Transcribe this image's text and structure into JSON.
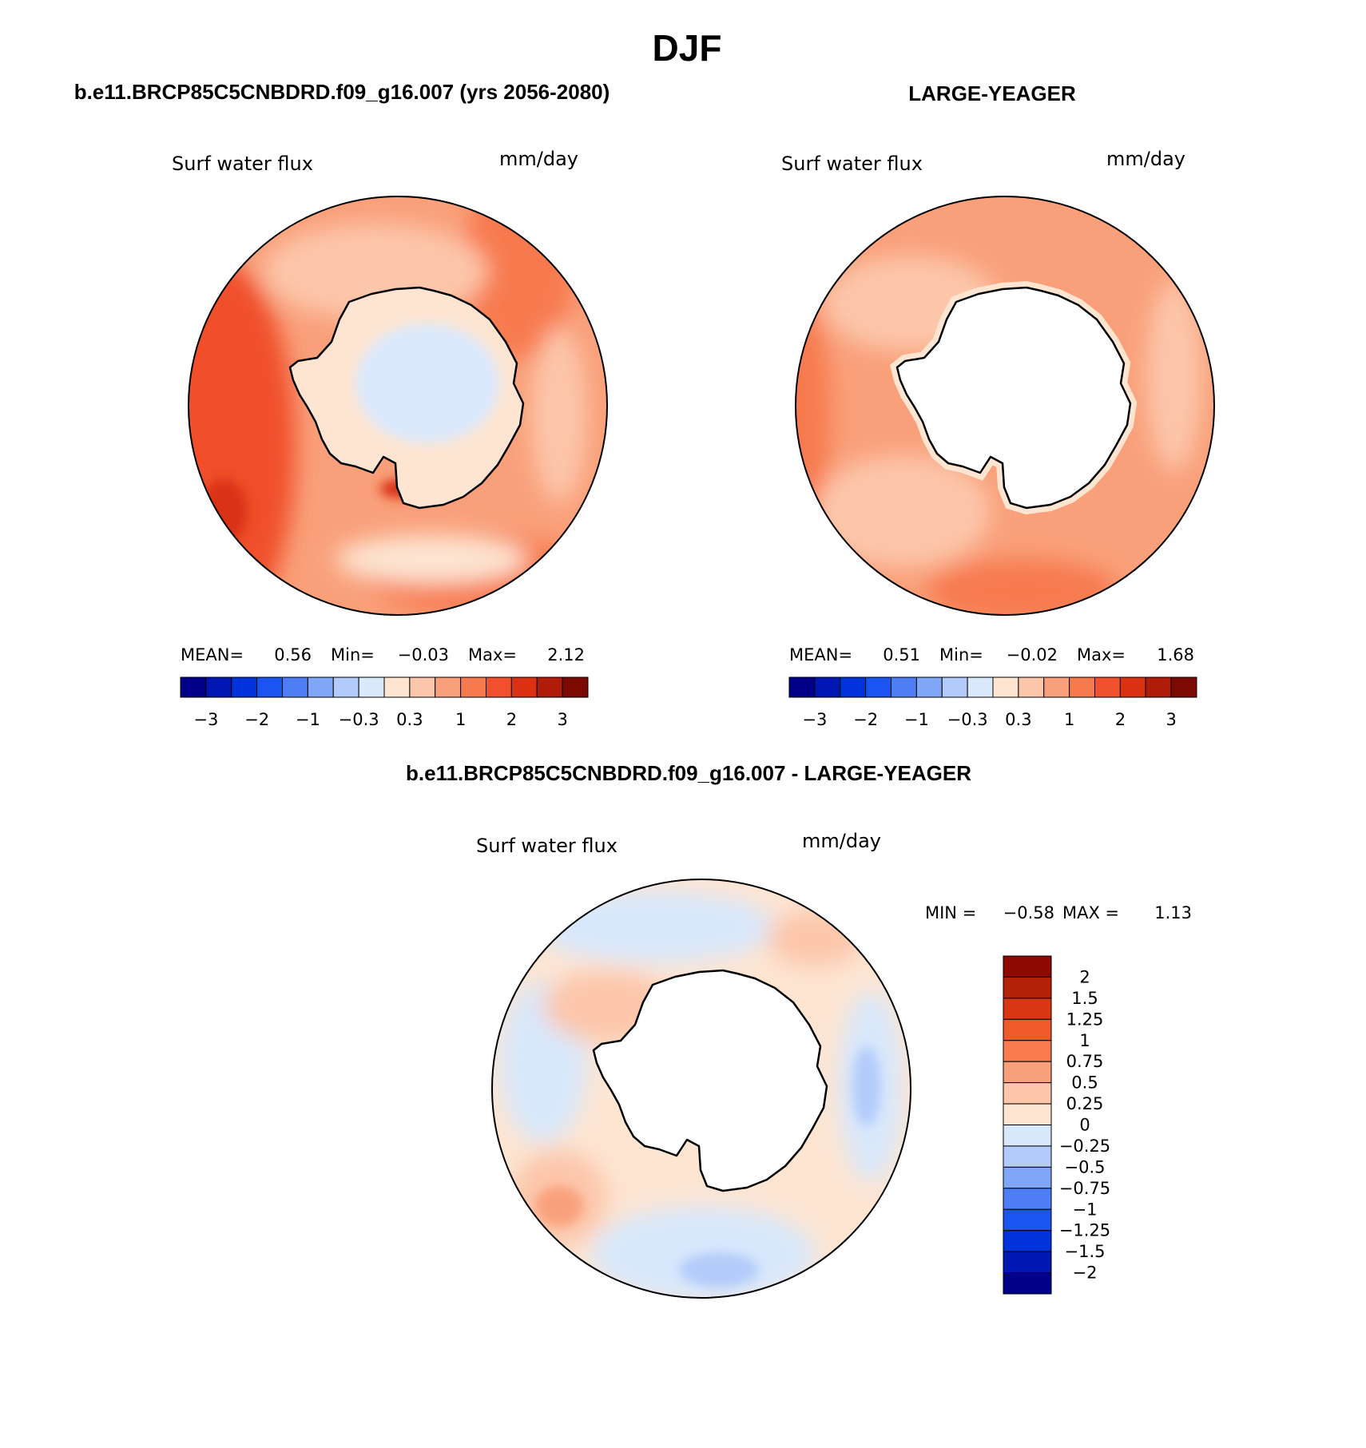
{
  "title": "DJF",
  "panels": {
    "left": {
      "header": "b.e11.BRCP85C5CNBDRD.f09_g16.007 (yrs 2056-2080)",
      "variable": "Surf water flux",
      "units": "mm/day",
      "stats": {
        "mean_label": "MEAN=",
        "mean": "0.56",
        "min_label": "Min=",
        "min": "−0.03",
        "max_label": "Max=",
        "max": "2.12"
      },
      "colorbar_ticks": [
        "−3",
        "−2",
        "−1",
        "−0.3",
        "0.3",
        "1",
        "2",
        "3"
      ]
    },
    "right": {
      "header": "LARGE-YEAGER",
      "variable": "Surf water flux",
      "units": "mm/day",
      "stats": {
        "mean_label": "MEAN=",
        "mean": "0.51",
        "min_label": "Min=",
        "min": "−0.02",
        "max_label": "Max=",
        "max": "1.68"
      },
      "colorbar_ticks": [
        "−3",
        "−2",
        "−1",
        "−0.3",
        "0.3",
        "1",
        "2",
        "3"
      ]
    },
    "diff": {
      "header": "b.e11.BRCP85C5CNBDRD.f09_g16.007 - LARGE-YEAGER",
      "variable": "Surf water flux",
      "units": "mm/day",
      "stats": {
        "min_label": "MIN =",
        "min": "−0.58",
        "max_label": "MAX =",
        "max": "1.13"
      },
      "colorbar_labels": [
        "2",
        "1.5",
        "1.25",
        "1",
        "0.75",
        "0.5",
        "0.25",
        "0",
        "−0.25",
        "−0.5",
        "−0.75",
        "−1",
        "−1.25",
        "−1.5",
        "−2"
      ]
    }
  },
  "colors": {
    "field_scale": [
      "#00008a",
      "#0017b3",
      "#0033d9",
      "#1a55f0",
      "#4d7ef5",
      "#80a6f7",
      "#b3cbfa",
      "#dbe9fc",
      "#fde5d2",
      "#fcc6aa",
      "#f9a07a",
      "#f77a4f",
      "#f0502b",
      "#d93112",
      "#b01c08",
      "#7c0a02"
    ],
    "diff_scale": [
      "#8c0a02",
      "#b52108",
      "#d93712",
      "#ef5a2a",
      "#f77b4f",
      "#f9a07a",
      "#fcc6aa",
      "#fde5d2",
      "#d8e8fc",
      "#b3cbfa",
      "#80a6f7",
      "#4d7ef5",
      "#1a55f0",
      "#0033d9",
      "#0017b3",
      "#00008a"
    ]
  }
}
